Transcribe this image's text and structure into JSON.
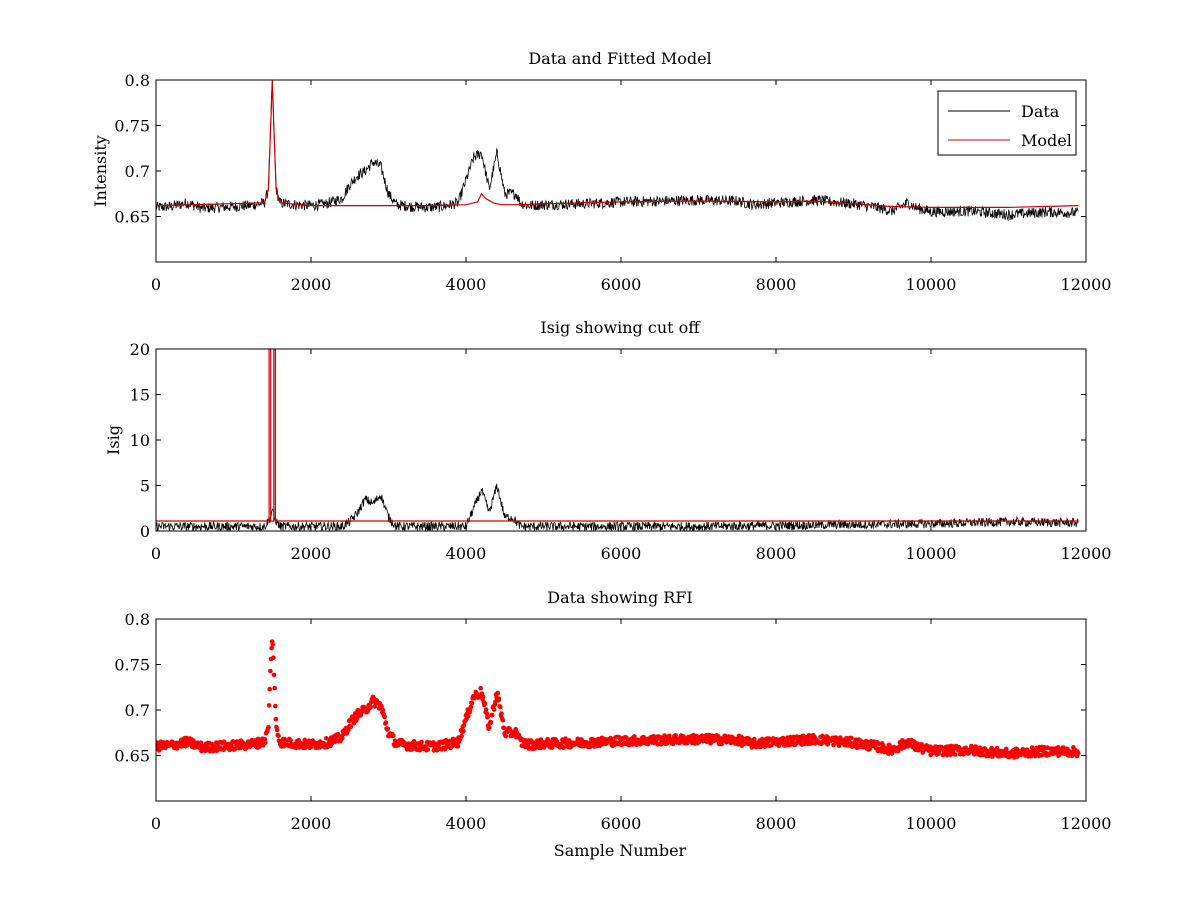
{
  "chart_data": [
    {
      "type": "line",
      "title": "Data and Fitted Model",
      "xlabel": "",
      "ylabel": "Intensity",
      "xlim": [
        0,
        12000
      ],
      "ylim": [
        0.6,
        0.8
      ],
      "xticks": [
        0,
        2000,
        4000,
        6000,
        8000,
        10000,
        12000
      ],
      "xtick_labels": [
        "0",
        "2000",
        "4000",
        "6000",
        "8000",
        "10000",
        "12000"
      ],
      "yticks": [
        0.65,
        0.7,
        0.75,
        0.8
      ],
      "ytick_labels": [
        "0.65",
        "0.7",
        "0.75",
        "0.8"
      ],
      "grid": false,
      "legend": {
        "placement": "top-right",
        "entries": [
          "Data",
          "Model"
        ]
      },
      "series": [
        {
          "name": "Data",
          "color": "#000000",
          "style": "noisy-line",
          "noise_amplitude": 0.006,
          "x": [
            0,
            200,
            400,
            600,
            800,
            1000,
            1200,
            1400,
            1450,
            1480,
            1500,
            1520,
            1550,
            1600,
            1800,
            2000,
            2200,
            2400,
            2500,
            2600,
            2700,
            2800,
            2900,
            3000,
            3100,
            3300,
            3500,
            3700,
            3900,
            4100,
            4200,
            4300,
            4400,
            4500,
            4600,
            4650,
            4700,
            4800,
            5000,
            5500,
            6000,
            6500,
            7000,
            7500,
            7700,
            8000,
            8500,
            9000,
            9300,
            9500,
            9700,
            9800,
            10000,
            10500,
            11000,
            11500,
            11900
          ],
          "y": [
            0.66,
            0.661,
            0.665,
            0.659,
            0.66,
            0.661,
            0.662,
            0.665,
            0.68,
            0.75,
            0.8,
            0.75,
            0.68,
            0.665,
            0.663,
            0.662,
            0.664,
            0.67,
            0.685,
            0.695,
            0.7,
            0.71,
            0.705,
            0.675,
            0.663,
            0.661,
            0.66,
            0.661,
            0.665,
            0.715,
            0.72,
            0.68,
            0.72,
            0.675,
            0.675,
            0.675,
            0.665,
            0.662,
            0.663,
            0.664,
            0.666,
            0.667,
            0.668,
            0.667,
            0.663,
            0.665,
            0.668,
            0.664,
            0.66,
            0.656,
            0.665,
            0.66,
            0.655,
            0.656,
            0.652,
            0.655,
            0.654
          ]
        },
        {
          "name": "Model",
          "color": "#cc0000",
          "style": "line",
          "x": [
            0,
            1400,
            1450,
            1480,
            1500,
            1520,
            1550,
            1600,
            2000,
            2500,
            3000,
            3500,
            4000,
            4150,
            4200,
            4250,
            4350,
            4450,
            4700,
            5000,
            6000,
            7000,
            8000,
            8500,
            9000,
            9500,
            10000,
            11000,
            11900
          ],
          "y": [
            0.662,
            0.665,
            0.68,
            0.75,
            0.8,
            0.75,
            0.68,
            0.665,
            0.662,
            0.662,
            0.662,
            0.662,
            0.663,
            0.666,
            0.675,
            0.67,
            0.665,
            0.663,
            0.663,
            0.664,
            0.666,
            0.667,
            0.666,
            0.667,
            0.664,
            0.661,
            0.66,
            0.66,
            0.662
          ]
        }
      ]
    },
    {
      "type": "line",
      "title": "Isig showing cut off",
      "xlabel": "",
      "ylabel": "Isig",
      "xlim": [
        0,
        12000
      ],
      "ylim": [
        0,
        20
      ],
      "xticks": [
        0,
        2000,
        4000,
        6000,
        8000,
        10000,
        12000
      ],
      "xtick_labels": [
        "0",
        "2000",
        "4000",
        "6000",
        "8000",
        "10000",
        "12000"
      ],
      "yticks": [
        0,
        5,
        10,
        15,
        20
      ],
      "ytick_labels": [
        "0",
        "5",
        "10",
        "15",
        "20"
      ],
      "grid": false,
      "series": [
        {
          "name": "Isig",
          "color": "#000000",
          "style": "noisy-line",
          "noise_amplitude": 0.5,
          "x": [
            0,
            1000,
            1400,
            1480,
            1500,
            1520,
            1600,
            2400,
            2500,
            2600,
            2700,
            2800,
            2900,
            3000,
            3100,
            4000,
            4100,
            4200,
            4300,
            4400,
            4500,
            4600,
            4700,
            5000,
            7000,
            8000,
            9000,
            10000,
            11000,
            11900
          ],
          "y": [
            0.5,
            0.5,
            0.5,
            1.5,
            2.5,
            1.5,
            0.5,
            0.5,
            1.0,
            2.0,
            3.5,
            3.0,
            4.0,
            1.5,
            0.5,
            0.5,
            2.5,
            4.5,
            2.0,
            5.0,
            1.5,
            1.5,
            0.5,
            0.5,
            0.5,
            0.6,
            0.7,
            0.8,
            1.0,
            0.9
          ]
        },
        {
          "name": "Cut off",
          "color": "#cc0000",
          "style": "line",
          "x": [
            0,
            1460,
            1460,
            1480,
            1480,
            1520,
            1520,
            1540,
            1540,
            11900
          ],
          "y": [
            1.1,
            1.1,
            20,
            20,
            1.1,
            1.1,
            20,
            20,
            1.1,
            1.1
          ]
        }
      ]
    },
    {
      "type": "scatter",
      "title": "Data showing RFI",
      "xlabel": "Sample Number",
      "ylabel": "",
      "xlim": [
        0,
        12000
      ],
      "ylim": [
        0.6,
        0.8
      ],
      "xticks": [
        0,
        2000,
        4000,
        6000,
        8000,
        10000,
        12000
      ],
      "xtick_labels": [
        "0",
        "2000",
        "4000",
        "6000",
        "8000",
        "10000",
        "12000"
      ],
      "yticks": [
        0.65,
        0.7,
        0.75,
        0.8
      ],
      "ytick_labels": [
        "0.65",
        "0.7",
        "0.75",
        "0.8"
      ],
      "grid": false,
      "series": [
        {
          "name": "RFI",
          "color": "#ff0000",
          "style": "markers",
          "noise_amplitude": 0.005,
          "x": [
            0,
            200,
            400,
            600,
            800,
            1000,
            1200,
            1400,
            1450,
            1480,
            1500,
            1520,
            1550,
            1600,
            1800,
            2000,
            2200,
            2400,
            2500,
            2600,
            2700,
            2800,
            2900,
            3000,
            3100,
            3300,
            3500,
            3700,
            3900,
            4100,
            4200,
            4300,
            4400,
            4500,
            4600,
            4650,
            4700,
            4800,
            5000,
            5500,
            6000,
            6500,
            7000,
            7500,
            7700,
            8000,
            8500,
            9000,
            9300,
            9500,
            9700,
            9800,
            10000,
            10500,
            11000,
            11500,
            11900
          ],
          "y": [
            0.66,
            0.661,
            0.665,
            0.659,
            0.66,
            0.661,
            0.662,
            0.665,
            0.68,
            0.75,
            0.78,
            0.75,
            0.68,
            0.665,
            0.663,
            0.662,
            0.664,
            0.67,
            0.685,
            0.695,
            0.7,
            0.71,
            0.705,
            0.675,
            0.663,
            0.661,
            0.66,
            0.661,
            0.665,
            0.715,
            0.72,
            0.68,
            0.72,
            0.675,
            0.675,
            0.675,
            0.665,
            0.662,
            0.663,
            0.664,
            0.666,
            0.667,
            0.668,
            0.667,
            0.663,
            0.665,
            0.668,
            0.664,
            0.66,
            0.656,
            0.665,
            0.66,
            0.655,
            0.656,
            0.652,
            0.655,
            0.654
          ]
        }
      ]
    }
  ]
}
